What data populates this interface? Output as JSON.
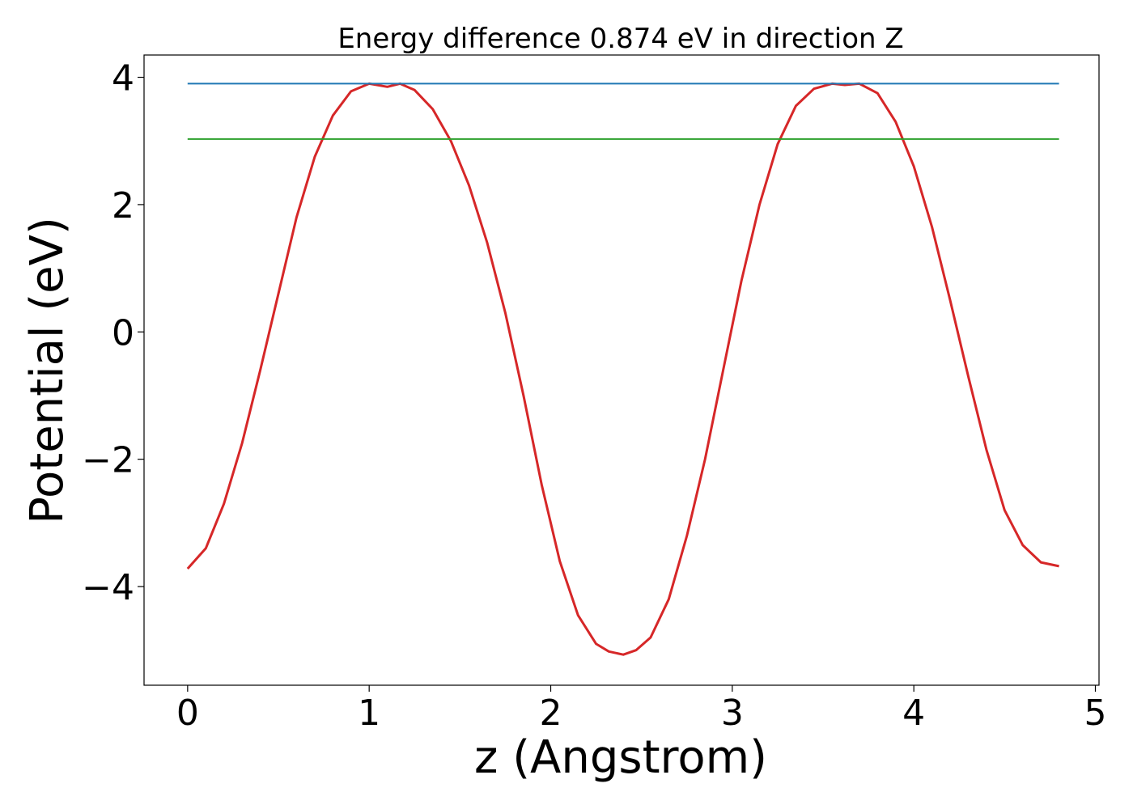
{
  "chart_data": {
    "type": "line",
    "title": "Energy difference 0.874 eV in direction Z",
    "xlabel": "z (Angstrom)",
    "ylabel": "Potential (eV)",
    "xlim": [
      -0.24,
      5.02
    ],
    "ylim": [
      -5.55,
      4.35
    ],
    "x_ticks": [
      0,
      1,
      2,
      3,
      4,
      5
    ],
    "y_ticks": [
      -4,
      -2,
      0,
      2,
      4
    ],
    "x_tick_labels": [
      "0",
      "1",
      "2",
      "3",
      "4",
      "5"
    ],
    "y_tick_labels": [
      "−4",
      "−2",
      "0",
      "2",
      "4"
    ],
    "grid": false,
    "legend": "none",
    "series": [
      {
        "color": "#d62728",
        "kind": "curve",
        "x": [
          0,
          0.1,
          0.2,
          0.3,
          0.4,
          0.5,
          0.6,
          0.7,
          0.8,
          0.9,
          1.0,
          1.1,
          1.17,
          1.25,
          1.35,
          1.45,
          1.55,
          1.65,
          1.75,
          1.85,
          1.95,
          2.05,
          2.15,
          2.25,
          2.32,
          2.4,
          2.47,
          2.55,
          2.65,
          2.75,
          2.85,
          2.95,
          3.05,
          3.15,
          3.25,
          3.35,
          3.45,
          3.55,
          3.62,
          3.7,
          3.8,
          3.9,
          4.0,
          4.1,
          4.2,
          4.3,
          4.4,
          4.5,
          4.6,
          4.7,
          4.8
        ],
        "y": [
          -3.72,
          -3.4,
          -2.7,
          -1.75,
          -0.6,
          0.6,
          1.8,
          2.75,
          3.4,
          3.78,
          3.9,
          3.85,
          3.9,
          3.8,
          3.5,
          3.0,
          2.3,
          1.4,
          0.3,
          -1.0,
          -2.4,
          -3.6,
          -4.45,
          -4.9,
          -5.02,
          -5.07,
          -5.0,
          -4.8,
          -4.2,
          -3.2,
          -2.0,
          -0.6,
          0.8,
          2.0,
          2.95,
          3.55,
          3.82,
          3.9,
          3.88,
          3.9,
          3.75,
          3.3,
          2.6,
          1.65,
          0.5,
          -0.7,
          -1.85,
          -2.8,
          -3.35,
          -3.62,
          -3.68
        ]
      },
      {
        "color": "#1f77b4",
        "kind": "hline",
        "x": [
          0,
          4.8
        ],
        "y": [
          3.9,
          3.9
        ]
      },
      {
        "color": "#2ca02c",
        "kind": "hline",
        "x": [
          0,
          4.8
        ],
        "y": [
          3.03,
          3.03
        ]
      }
    ]
  }
}
